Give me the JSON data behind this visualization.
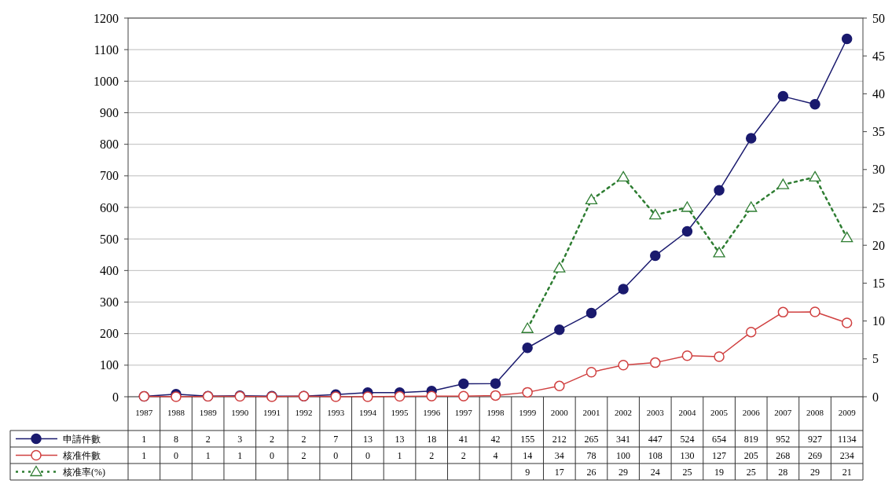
{
  "chart_data": {
    "type": "line",
    "categories": [
      "1987",
      "1988",
      "1989",
      "1990",
      "1991",
      "1992",
      "1993",
      "1994",
      "1995",
      "1996",
      "1997",
      "1998",
      "1999",
      "2000",
      "2001",
      "2002",
      "2003",
      "2004",
      "2005",
      "2006",
      "2007",
      "2008",
      "2009"
    ],
    "series": [
      {
        "name": "申請件數",
        "color": "#1a1a6e",
        "marker": "circle",
        "line_style": "solid",
        "values": [
          1,
          8,
          2,
          3,
          2,
          2,
          7,
          13,
          13,
          18,
          41,
          42,
          155,
          212,
          265,
          341,
          447,
          524,
          654,
          819,
          952,
          927,
          1134
        ]
      },
      {
        "name": "核准件數",
        "color": "#d04040",
        "marker": "circle",
        "line_style": "solid",
        "values": [
          1,
          0,
          1,
          1,
          0,
          2,
          0,
          0,
          1,
          2,
          2,
          4,
          14,
          34,
          78,
          100,
          108,
          130,
          127,
          205,
          268,
          269,
          234
        ]
      },
      {
        "name": "核准率(%)",
        "color": "#2e7d32",
        "marker": "triangle",
        "line_style": "dotted",
        "axis": "y2",
        "values": [
          null,
          null,
          null,
          null,
          null,
          null,
          null,
          null,
          null,
          null,
          null,
          null,
          9,
          17,
          26,
          29,
          24,
          25,
          19,
          25,
          28,
          29,
          21
        ]
      }
    ],
    "ylim": [
      0,
      1200
    ],
    "yticks": [
      0,
      100,
      200,
      300,
      400,
      500,
      600,
      700,
      800,
      900,
      1000,
      1100,
      1200
    ],
    "y2lim": [
      0,
      50
    ],
    "y2ticks": [
      0,
      5,
      10,
      15,
      20,
      25,
      30,
      35,
      40,
      45,
      50
    ],
    "grid": "y",
    "data_labels": true,
    "legend": "bottom left"
  }
}
